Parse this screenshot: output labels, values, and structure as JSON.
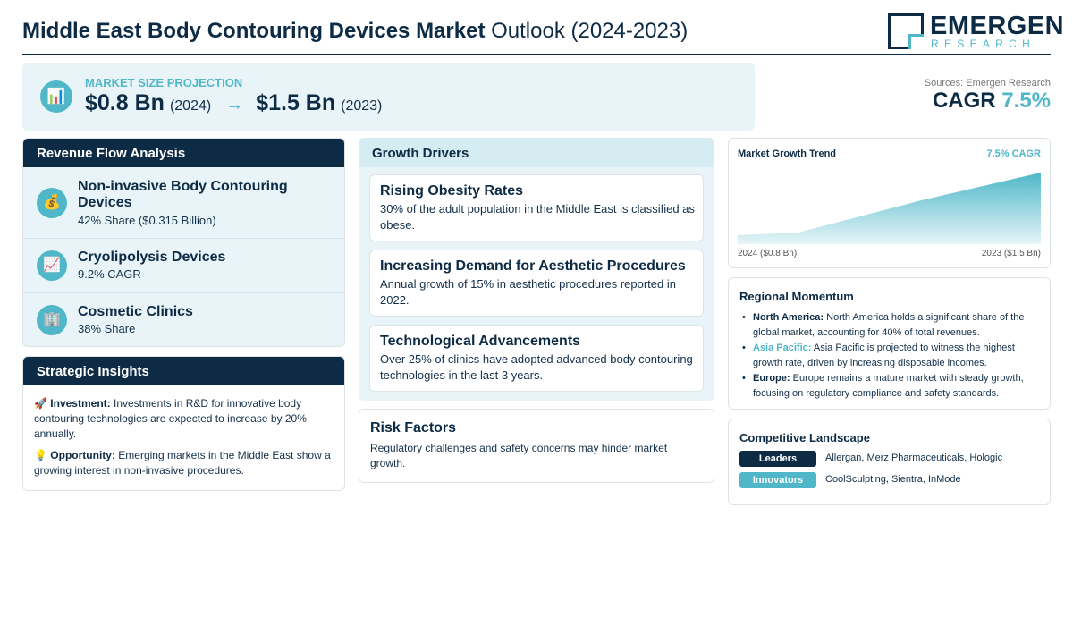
{
  "header": {
    "title_bold": "Middle East Body Contouring Devices Market",
    "title_rest": "Outlook (2024-2023)",
    "logo_name": "EMERGEN",
    "logo_sub": "RESEARCH"
  },
  "projection": {
    "icon": "bar-chart-icon",
    "label": "MARKET SIZE PROJECTION",
    "start_value": "$0.8 Bn",
    "start_year": "(2024)",
    "arrow": "→",
    "end_value": "$1.5 Bn",
    "end_year": "(2023)"
  },
  "sources": "Sources: Emergen Research",
  "cagr": {
    "label": "CAGR",
    "value": "7.5%"
  },
  "revenue_flow": {
    "heading": "Revenue Flow Analysis",
    "items": [
      {
        "icon": "money-bag-icon",
        "glyph": "💰",
        "title": "Non-invasive Body Contouring Devices",
        "sub": "42% Share ($0.315 Billion)"
      },
      {
        "icon": "chart-increasing-icon",
        "glyph": "📈",
        "title": "Cryolipolysis Devices",
        "sub": "9.2% CAGR"
      },
      {
        "icon": "office-building-icon",
        "glyph": "🏢",
        "title": "Cosmetic Clinics",
        "sub": "38% Share"
      }
    ]
  },
  "insights": {
    "heading": "Strategic Insights",
    "items": [
      {
        "icon": "rocket-icon",
        "glyph": "🚀",
        "label": "Investment:",
        "text": "Investments in R&D for innovative body contouring technologies are expected to increase by 20% annually."
      },
      {
        "icon": "light-bulb-icon",
        "glyph": "💡",
        "label": "Opportunity:",
        "text": "Emerging markets in the Middle East show a growing interest in non-invasive procedures."
      }
    ]
  },
  "drivers": {
    "heading": "Growth Drivers",
    "items": [
      {
        "title": "Rising Obesity Rates",
        "text": "30% of the adult population in the Middle East is classified as obese."
      },
      {
        "title": "Increasing Demand for Aesthetic Procedures",
        "text": "Annual growth of 15% in aesthetic procedures reported in 2022."
      },
      {
        "title": "Technological Advancements",
        "text": "Over 25% of clinics have adopted advanced body contouring technologies in the last 3 years."
      }
    ]
  },
  "risk": {
    "heading": "Risk Factors",
    "text": "Regulatory challenges and safety concerns may hinder market growth."
  },
  "trend": {
    "title": "Market Growth Trend",
    "cagr_label": "7.5% CAGR",
    "start_label": "2024 ($0.8 Bn)",
    "end_label": "2023 ($1.5 Bn)"
  },
  "chart_data": {
    "type": "area",
    "x": [
      "2024",
      "2023"
    ],
    "series": [
      {
        "values": [
          0.8,
          1.5
        ]
      }
    ],
    "title": "Market Growth Trend",
    "grid": false,
    "colors": {
      "fill_top": "#4fb7c8",
      "fill_bottom": "#e6f5f8"
    }
  },
  "regional": {
    "heading": "Regional Momentum",
    "items": [
      {
        "label": "North America:",
        "accent": false,
        "text": "North America holds a significant share of the global market, accounting for 40% of total revenues."
      },
      {
        "label": "Asia Pacific:",
        "accent": true,
        "text": "Asia Pacific is projected to witness the highest growth rate, driven by increasing disposable incomes."
      },
      {
        "label": "Europe:",
        "accent": false,
        "text": "Europe remains a mature market with steady growth, focusing on regulatory compliance and safety standards."
      }
    ]
  },
  "competitive": {
    "heading": "Competitive Landscape",
    "rows": [
      {
        "badge": "Leaders",
        "color": "#0d2b45",
        "names": "Allergan, Merz Pharmaceuticals, Hologic"
      },
      {
        "badge": "Innovators",
        "color": "#4fb7c8",
        "names": "CoolSculpting, Sientra, InMode"
      }
    ]
  },
  "colors": {
    "navy": "#0d2b45",
    "teal": "#4fb7c8",
    "panel": "#e8f4f7"
  }
}
